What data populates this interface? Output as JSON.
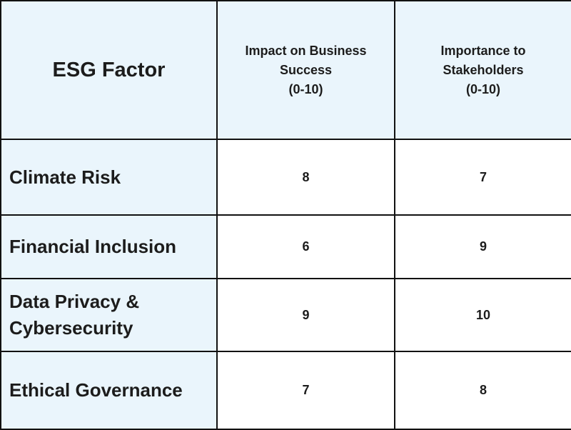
{
  "chart_data": {
    "type": "table",
    "columns": [
      "ESG Factor",
      [
        "Impact on Business",
        "Success",
        "(0-10)"
      ],
      [
        "Importance to",
        "Stakeholders",
        "(0-10)"
      ]
    ],
    "rows": [
      {
        "factor": [
          "Climate Risk"
        ],
        "impact": "8",
        "importance": "7"
      },
      {
        "factor": [
          "Financial Inclusion"
        ],
        "impact": "6",
        "importance": "9"
      },
      {
        "factor": [
          "Data Privacy &",
          "Cybersecurity"
        ],
        "impact": "9",
        "importance": "10"
      },
      {
        "factor": [
          "Ethical Governance"
        ],
        "impact": "7",
        "importance": "8"
      }
    ]
  },
  "colors": {
    "header_bg": "#eaf5fc",
    "factor_bg": "#eaf5fc",
    "value_bg": "#ffffff",
    "border": "#111111",
    "text": "#1c1c1c"
  }
}
